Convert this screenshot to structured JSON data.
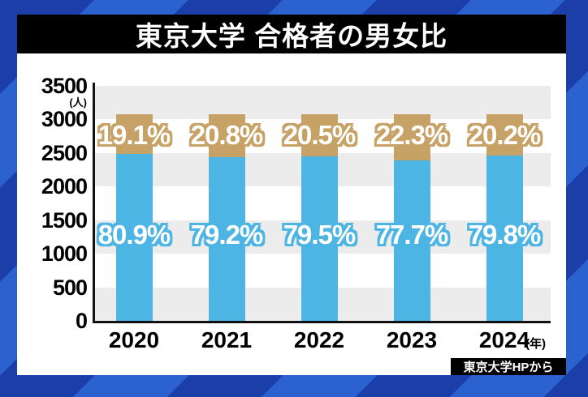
{
  "title": "東京大学 合格者の男女比",
  "source_label": "東京大学HPから",
  "colors": {
    "lower_bar_blue": "#4db5e4",
    "upper_bar_tan": "#c7a266",
    "grid_band_gray": "#ececec",
    "background_stripe_light": "#2b62d0",
    "background_stripe_dark": "#1b3ea8",
    "title_bar": "#000000",
    "panel": "#ffffff"
  },
  "chart_data": {
    "type": "bar",
    "stacked": true,
    "title": "東京大学 合格者の男女比",
    "categories": [
      "2020",
      "2021",
      "2022",
      "2023",
      "2024"
    ],
    "series": [
      {
        "name": "lower-blue-share",
        "color": "#4db5e4",
        "percents": [
          80.9,
          79.2,
          79.5,
          77.7,
          79.8
        ]
      },
      {
        "name": "upper-tan-share",
        "color": "#c7a266",
        "percents": [
          19.1,
          20.8,
          20.5,
          22.3,
          20.2
        ]
      }
    ],
    "bar_total_people": 3080,
    "ylim": [
      0,
      3500
    ],
    "y_ticks": [
      0,
      500,
      1000,
      1500,
      2000,
      2500,
      3000,
      3500
    ],
    "y_unit": "(人)",
    "x_unit": "(年)",
    "grid": "alternating-horizontal-bands",
    "band_color": "#ececec",
    "legend_position": "none"
  }
}
